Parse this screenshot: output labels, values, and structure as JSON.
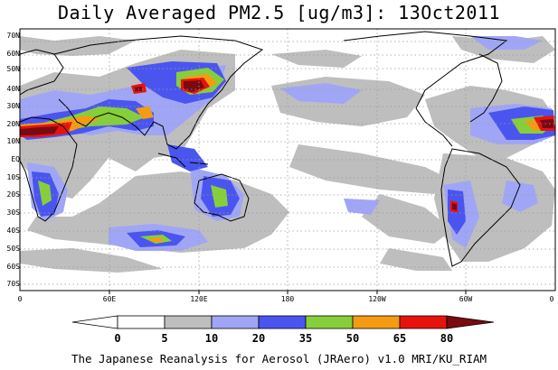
{
  "title": "Daily Averaged PM2.5 [ug/m3]: 13Oct2011",
  "footer": "The Japanese Reanalysis for Aerosol (JRAero) v1.0 MRI/KU_RIAM",
  "lat_labels": [
    "70N",
    "60N",
    "50N",
    "40N",
    "30N",
    "20N",
    "10N",
    "EQ",
    "10S",
    "20S",
    "30S",
    "40S",
    "50S",
    "60S",
    "70S"
  ],
  "lon_labels": [
    "0",
    "60E",
    "120E",
    "180",
    "120W",
    "60W",
    "0"
  ],
  "colorbar": {
    "levels": [
      "0",
      "5",
      "10",
      "20",
      "35",
      "50",
      "65",
      "80"
    ],
    "colors": [
      "#ffffff",
      "#bebebe",
      "#a0a6f5",
      "#4a55f0",
      "#86cf3a",
      "#f59b12",
      "#e8120d",
      "#7a0a12"
    ]
  },
  "layers": {
    "ocean": "#ffffff",
    "coast": "#000000",
    "grid": "#9a9a9a"
  }
}
